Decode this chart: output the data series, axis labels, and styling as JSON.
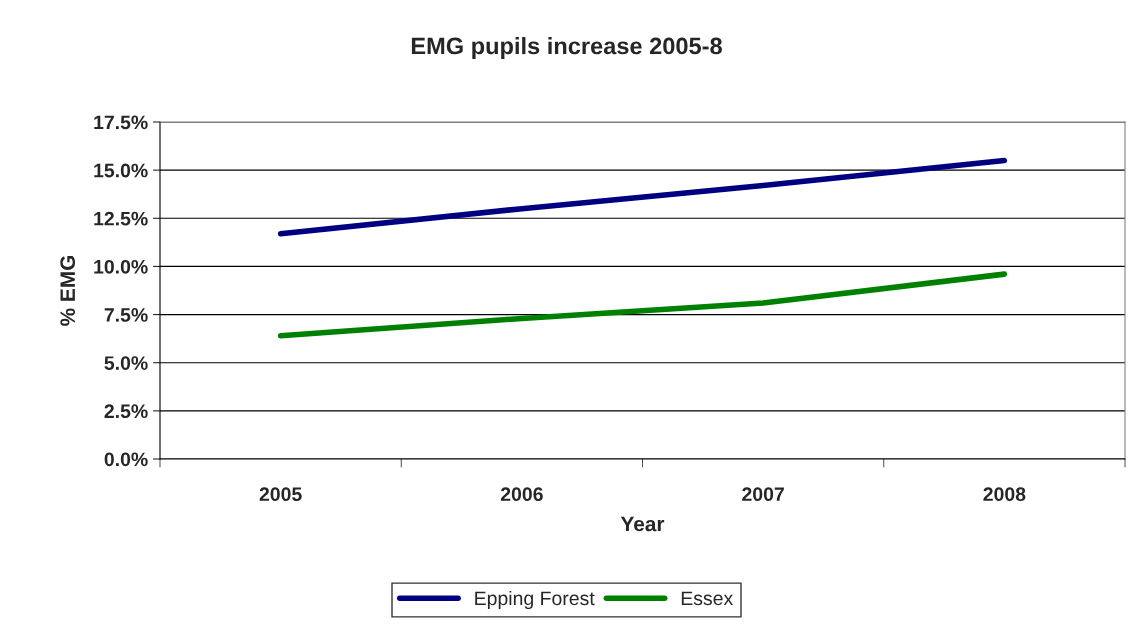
{
  "chart_data": {
    "type": "line",
    "title": "EMG pupils increase 2005-8",
    "xlabel": "Year",
    "ylabel": "% EMG",
    "categories": [
      "2005",
      "2006",
      "2007",
      "2008"
    ],
    "series": [
      {
        "name": "Epping Forest",
        "color": "#000080",
        "values": [
          11.7,
          13.0,
          14.2,
          15.5
        ]
      },
      {
        "name": "Essex",
        "color": "#008000",
        "values": [
          6.4,
          7.3,
          8.1,
          9.6
        ]
      }
    ],
    "ylim": [
      0,
      17.5
    ],
    "yticks": [
      {
        "value": 0,
        "label": "0.0%"
      },
      {
        "value": 2.5,
        "label": "2.5%"
      },
      {
        "value": 5,
        "label": "5.0%"
      },
      {
        "value": 7.5,
        "label": "7.5%"
      },
      {
        "value": 10,
        "label": "10.0%"
      },
      {
        "value": 12.5,
        "label": "12.5%"
      },
      {
        "value": 15,
        "label": "15.0%"
      },
      {
        "value": 17.5,
        "label": "17.5%"
      }
    ],
    "grid": "y",
    "legend": "bottom",
    "marker": "none",
    "line_style": "solid"
  }
}
